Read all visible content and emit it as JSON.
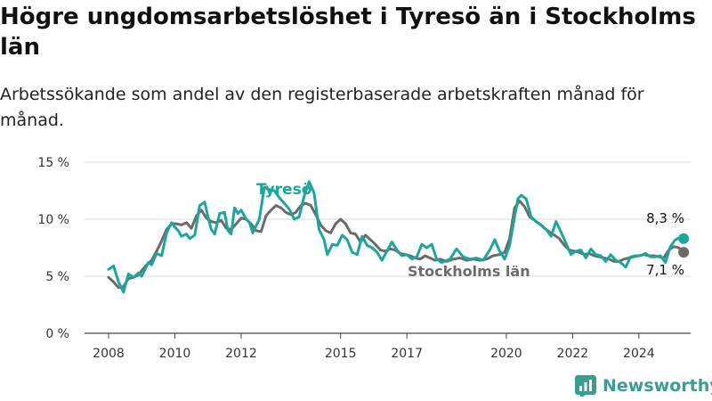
{
  "title": "Högre ungdomsarbetslöshet i Tyresö än i Stockholms län",
  "subtitle": "Arbetssökande som andel av den registerbaserade arbetskraften månad för månad.",
  "brand": "Newsworthy",
  "colors": {
    "tyreso": "#1aa79b",
    "stockholm": "#6e6a6a",
    "grid": "#d9d9d9",
    "brand": "#3a9d94"
  },
  "chart_data": {
    "type": "line",
    "ylim": [
      0,
      15
    ],
    "yticks": [
      0,
      5,
      10,
      15
    ],
    "ytick_labels": [
      "0 %",
      "5 %",
      "10 %",
      "15 %"
    ],
    "xlim": [
      2008.0,
      2025.4
    ],
    "xticks": [
      2008,
      2010,
      2012,
      2015,
      2017,
      2020,
      2022,
      2024
    ],
    "xtick_labels": [
      "2008",
      "2010",
      "2012",
      "2015",
      "2017",
      "2020",
      "2022",
      "2024"
    ],
    "grid": "horizontal",
    "annotations": {
      "tyreso_last": "8,3 %",
      "stockholm_last": "7,1 %"
    },
    "series": [
      {
        "name": "Tyresö",
        "points": [
          [
            2008.0,
            5.6
          ],
          [
            2008.15,
            5.9
          ],
          [
            2008.3,
            4.5
          ],
          [
            2008.45,
            3.6
          ],
          [
            2008.6,
            5.2
          ],
          [
            2008.75,
            4.9
          ],
          [
            2008.9,
            5.3
          ],
          [
            2009.0,
            5.0
          ],
          [
            2009.1,
            5.6
          ],
          [
            2009.2,
            6.2
          ],
          [
            2009.3,
            6.0
          ],
          [
            2009.45,
            7.0
          ],
          [
            2009.6,
            6.8
          ],
          [
            2009.75,
            8.8
          ],
          [
            2009.9,
            9.7
          ],
          [
            2010.0,
            9.3
          ],
          [
            2010.1,
            9.0
          ],
          [
            2010.2,
            8.5
          ],
          [
            2010.35,
            8.7
          ],
          [
            2010.45,
            8.3
          ],
          [
            2010.6,
            8.6
          ],
          [
            2010.75,
            11.2
          ],
          [
            2010.9,
            11.5
          ],
          [
            2011.0,
            10.2
          ],
          [
            2011.1,
            9.1
          ],
          [
            2011.2,
            8.7
          ],
          [
            2011.35,
            10.5
          ],
          [
            2011.5,
            10.6
          ],
          [
            2011.6,
            9.0
          ],
          [
            2011.7,
            8.7
          ],
          [
            2011.8,
            11.0
          ],
          [
            2011.9,
            10.5
          ],
          [
            2012.0,
            10.8
          ],
          [
            2012.15,
            10.0
          ],
          [
            2012.25,
            9.7
          ],
          [
            2012.35,
            8.8
          ],
          [
            2012.45,
            9.4
          ],
          [
            2012.55,
            10.0
          ],
          [
            2012.7,
            12.8
          ],
          [
            2012.85,
            12.6
          ],
          [
            2013.0,
            12.5
          ],
          [
            2013.15,
            11.9
          ],
          [
            2013.3,
            11.4
          ],
          [
            2013.45,
            10.9
          ],
          [
            2013.6,
            10.0
          ],
          [
            2013.75,
            10.2
          ],
          [
            2013.9,
            12.0
          ],
          [
            2014.05,
            13.3
          ],
          [
            2014.2,
            12.3
          ],
          [
            2014.35,
            9.1
          ],
          [
            2014.5,
            8.2
          ],
          [
            2014.6,
            6.9
          ],
          [
            2014.75,
            7.8
          ],
          [
            2014.9,
            7.7
          ],
          [
            2015.05,
            8.6
          ],
          [
            2015.2,
            8.2
          ],
          [
            2015.35,
            7.1
          ],
          [
            2015.5,
            6.9
          ],
          [
            2015.65,
            8.5
          ],
          [
            2015.8,
            7.7
          ],
          [
            2015.95,
            7.5
          ],
          [
            2016.1,
            7.1
          ],
          [
            2016.25,
            6.4
          ],
          [
            2016.4,
            7.2
          ],
          [
            2016.55,
            8.0
          ],
          [
            2016.7,
            7.3
          ],
          [
            2016.85,
            6.8
          ],
          [
            2017.0,
            6.9
          ],
          [
            2017.15,
            6.5
          ],
          [
            2017.3,
            6.7
          ],
          [
            2017.45,
            7.8
          ],
          [
            2017.6,
            7.5
          ],
          [
            2017.75,
            7.8
          ],
          [
            2017.9,
            6.5
          ],
          [
            2018.05,
            6.2
          ],
          [
            2018.3,
            6.5
          ],
          [
            2018.5,
            7.4
          ],
          [
            2018.7,
            6.7
          ],
          [
            2018.9,
            6.5
          ],
          [
            2019.1,
            6.6
          ],
          [
            2019.3,
            6.4
          ],
          [
            2019.5,
            7.3
          ],
          [
            2019.65,
            8.2
          ],
          [
            2019.8,
            7.2
          ],
          [
            2019.95,
            6.5
          ],
          [
            2020.1,
            7.7
          ],
          [
            2020.25,
            10.2
          ],
          [
            2020.35,
            11.8
          ],
          [
            2020.45,
            12.1
          ],
          [
            2020.6,
            11.8
          ],
          [
            2020.75,
            10.2
          ],
          [
            2020.9,
            9.8
          ],
          [
            2021.05,
            9.5
          ],
          [
            2021.2,
            9.1
          ],
          [
            2021.35,
            8.5
          ],
          [
            2021.5,
            9.8
          ],
          [
            2021.65,
            8.9
          ],
          [
            2021.8,
            7.9
          ],
          [
            2021.95,
            6.9
          ],
          [
            2022.1,
            7.2
          ],
          [
            2022.25,
            7.3
          ],
          [
            2022.4,
            6.6
          ],
          [
            2022.55,
            7.4
          ],
          [
            2022.7,
            6.9
          ],
          [
            2022.85,
            6.8
          ],
          [
            2023.0,
            6.3
          ],
          [
            2023.15,
            6.9
          ],
          [
            2023.3,
            6.4
          ],
          [
            2023.45,
            6.2
          ],
          [
            2023.6,
            5.8
          ],
          [
            2023.75,
            6.7
          ],
          [
            2023.9,
            6.8
          ],
          [
            2024.05,
            6.8
          ],
          [
            2024.2,
            7.0
          ],
          [
            2024.35,
            6.7
          ],
          [
            2024.5,
            6.7
          ],
          [
            2024.65,
            6.8
          ],
          [
            2024.8,
            6.2
          ],
          [
            2024.95,
            7.6
          ],
          [
            2025.1,
            8.2
          ],
          [
            2025.25,
            8.4
          ],
          [
            2025.35,
            8.3
          ]
        ]
      },
      {
        "name": "Stockholms län",
        "points": [
          [
            2008.0,
            4.9
          ],
          [
            2008.15,
            4.5
          ],
          [
            2008.3,
            4.0
          ],
          [
            2008.45,
            4.1
          ],
          [
            2008.6,
            4.8
          ],
          [
            2008.75,
            4.9
          ],
          [
            2008.9,
            5.1
          ],
          [
            2009.0,
            5.5
          ],
          [
            2009.15,
            6.0
          ],
          [
            2009.3,
            6.4
          ],
          [
            2009.45,
            7.2
          ],
          [
            2009.6,
            8.1
          ],
          [
            2009.75,
            9.1
          ],
          [
            2009.9,
            9.6
          ],
          [
            2010.05,
            9.6
          ],
          [
            2010.2,
            9.5
          ],
          [
            2010.35,
            9.7
          ],
          [
            2010.5,
            9.2
          ],
          [
            2010.65,
            10.3
          ],
          [
            2010.8,
            10.8
          ],
          [
            2010.95,
            10.1
          ],
          [
            2011.1,
            9.8
          ],
          [
            2011.25,
            9.7
          ],
          [
            2011.4,
            9.9
          ],
          [
            2011.55,
            9.2
          ],
          [
            2011.7,
            9.1
          ],
          [
            2011.85,
            9.6
          ],
          [
            2012.0,
            10.1
          ],
          [
            2012.15,
            10.0
          ],
          [
            2012.3,
            9.6
          ],
          [
            2012.45,
            9.0
          ],
          [
            2012.6,
            8.9
          ],
          [
            2012.75,
            10.3
          ],
          [
            2012.9,
            10.8
          ],
          [
            2013.05,
            11.2
          ],
          [
            2013.2,
            11.0
          ],
          [
            2013.35,
            10.6
          ],
          [
            2013.5,
            10.4
          ],
          [
            2013.65,
            10.6
          ],
          [
            2013.8,
            11.2
          ],
          [
            2013.95,
            11.4
          ],
          [
            2014.1,
            11.2
          ],
          [
            2014.25,
            10.4
          ],
          [
            2014.4,
            9.5
          ],
          [
            2014.55,
            9.0
          ],
          [
            2014.7,
            8.8
          ],
          [
            2014.85,
            9.6
          ],
          [
            2015.0,
            10.0
          ],
          [
            2015.15,
            9.6
          ],
          [
            2015.3,
            8.8
          ],
          [
            2015.45,
            8.7
          ],
          [
            2015.6,
            8.0
          ],
          [
            2015.75,
            8.6
          ],
          [
            2015.9,
            8.2
          ],
          [
            2016.05,
            7.8
          ],
          [
            2016.2,
            7.3
          ],
          [
            2016.35,
            7.2
          ],
          [
            2016.5,
            7.4
          ],
          [
            2016.65,
            7.3
          ],
          [
            2016.8,
            7.0
          ],
          [
            2016.95,
            6.9
          ],
          [
            2017.1,
            6.8
          ],
          [
            2017.25,
            6.6
          ],
          [
            2017.4,
            6.5
          ],
          [
            2017.55,
            6.8
          ],
          [
            2017.7,
            6.6
          ],
          [
            2017.85,
            6.4
          ],
          [
            2018.0,
            6.5
          ],
          [
            2018.2,
            6.3
          ],
          [
            2018.4,
            6.5
          ],
          [
            2018.6,
            6.6
          ],
          [
            2018.8,
            6.4
          ],
          [
            2019.0,
            6.5
          ],
          [
            2019.2,
            6.4
          ],
          [
            2019.4,
            6.5
          ],
          [
            2019.6,
            6.8
          ],
          [
            2019.8,
            6.9
          ],
          [
            2019.95,
            7.1
          ],
          [
            2020.1,
            8.3
          ],
          [
            2020.25,
            11.0
          ],
          [
            2020.4,
            11.6
          ],
          [
            2020.55,
            11.1
          ],
          [
            2020.7,
            10.2
          ],
          [
            2020.85,
            9.9
          ],
          [
            2021.0,
            9.6
          ],
          [
            2021.15,
            9.2
          ],
          [
            2021.3,
            8.9
          ],
          [
            2021.45,
            8.6
          ],
          [
            2021.6,
            8.3
          ],
          [
            2021.75,
            7.7
          ],
          [
            2021.9,
            7.3
          ],
          [
            2022.05,
            7.2
          ],
          [
            2022.2,
            7.1
          ],
          [
            2022.35,
            6.9
          ],
          [
            2022.5,
            7.0
          ],
          [
            2022.65,
            6.8
          ],
          [
            2022.8,
            6.7
          ],
          [
            2022.95,
            6.6
          ],
          [
            2023.1,
            6.5
          ],
          [
            2023.25,
            6.3
          ],
          [
            2023.4,
            6.3
          ],
          [
            2023.55,
            6.5
          ],
          [
            2023.7,
            6.6
          ],
          [
            2023.85,
            6.7
          ],
          [
            2024.0,
            6.8
          ],
          [
            2024.15,
            6.9
          ],
          [
            2024.3,
            6.8
          ],
          [
            2024.45,
            6.8
          ],
          [
            2024.6,
            6.7
          ],
          [
            2024.75,
            6.6
          ],
          [
            2024.9,
            7.3
          ],
          [
            2025.05,
            7.6
          ],
          [
            2025.2,
            7.5
          ],
          [
            2025.35,
            7.1
          ]
        ]
      }
    ]
  }
}
